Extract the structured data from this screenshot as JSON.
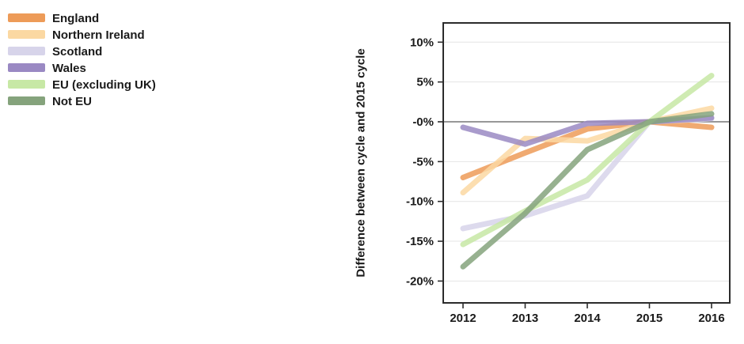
{
  "legend": {
    "items": [
      {
        "label": "England",
        "color": "#ED9B58"
      },
      {
        "label": "Northern Ireland",
        "color": "#FBD8A2"
      },
      {
        "label": "Scotland",
        "color": "#D7D4EA"
      },
      {
        "label": "Wales",
        "color": "#9A89C3"
      },
      {
        "label": "EU (excluding UK)",
        "color": "#C7E8A5"
      },
      {
        "label": "Not EU",
        "color": "#85A37C"
      }
    ]
  },
  "chart_data": {
    "type": "line",
    "title": "",
    "ylabel": "Difference between cycle and 2015 cycle",
    "xlabel": "",
    "x": [
      2012,
      2013,
      2014,
      2015,
      2016
    ],
    "xtick_labels": [
      "2012",
      "2013",
      "2014",
      "2015",
      "2016"
    ],
    "yticks": [
      10,
      5,
      0,
      -5,
      -10,
      -15,
      -20
    ],
    "ytick_labels": [
      "10%",
      "5%",
      "-0%",
      "-5%",
      "-10%",
      "-15%",
      "-20%"
    ],
    "ylim": [
      -22,
      12.5
    ],
    "grid": true,
    "zero_line": true,
    "legend_position": "outside-top-left",
    "series": [
      {
        "name": "England",
        "color": "#ED9B58",
        "values": [
          -7.0,
          -3.9,
          -0.9,
          0,
          -0.7
        ]
      },
      {
        "name": "Northern Ireland",
        "color": "#FBD8A2",
        "values": [
          -8.9,
          -2.1,
          -2.4,
          0,
          1.7
        ]
      },
      {
        "name": "Scotland",
        "color": "#D7D4EA",
        "values": [
          -13.4,
          -11.8,
          -9.3,
          0,
          0.4
        ]
      },
      {
        "name": "Wales",
        "color": "#9A89C3",
        "values": [
          -0.7,
          -2.8,
          -0.2,
          0,
          0.5
        ]
      },
      {
        "name": "EU (excluding UK)",
        "color": "#C7E8A5",
        "values": [
          -15.4,
          -11.2,
          -7.3,
          0,
          5.8
        ]
      },
      {
        "name": "Not EU",
        "color": "#85A37C",
        "values": [
          -18.2,
          -11.5,
          -3.5,
          0,
          1.0
        ]
      }
    ]
  },
  "colors": {
    "background": "#FFFFFF",
    "grid": "#E4E4E4",
    "zero_line": "#5A5A5A",
    "frame": "#2B2B2B",
    "text": "#1A1A1A"
  }
}
